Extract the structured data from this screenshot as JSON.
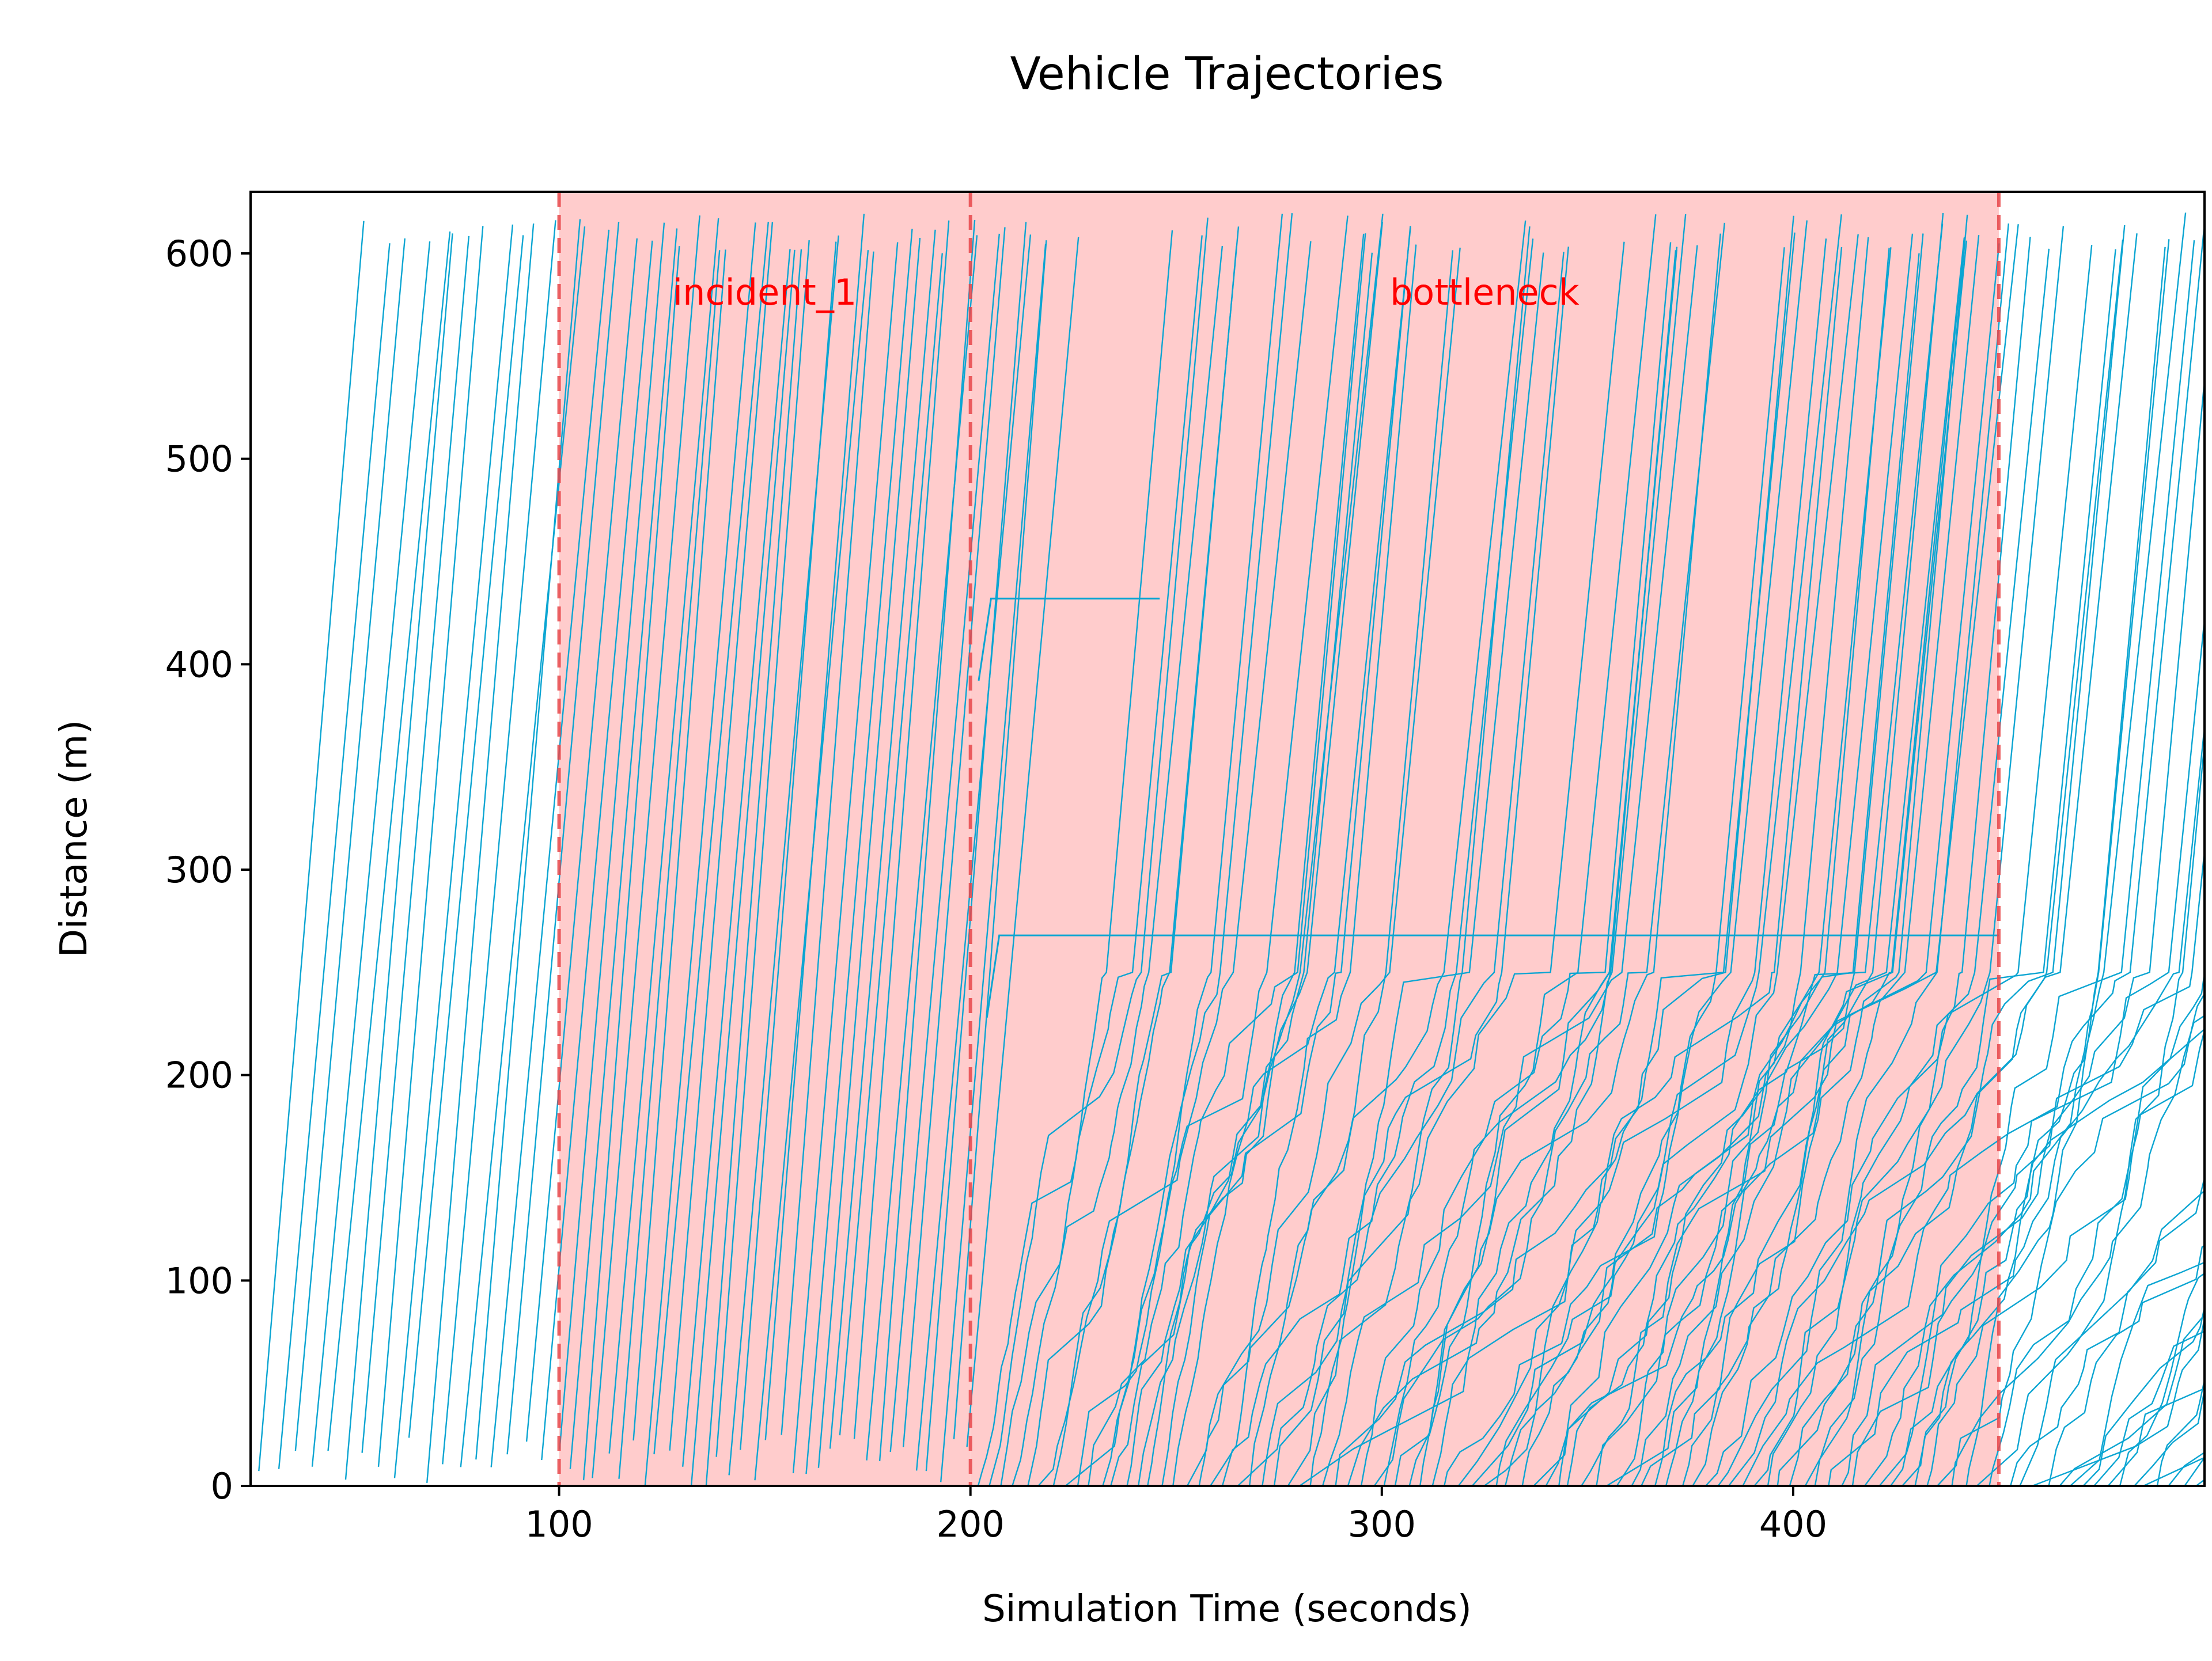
{
  "chart_data": {
    "type": "line",
    "title": "Vehicle Trajectories",
    "xlabel": "Simulation Time (seconds)",
    "ylabel": "Distance (m)",
    "xlim": [
      25,
      500
    ],
    "ylim": [
      0,
      630
    ],
    "x_ticks": [
      100,
      200,
      300,
      400
    ],
    "y_ticks": [
      0,
      100,
      200,
      300,
      400,
      500,
      600
    ],
    "grid": false,
    "road_length_m": 620,
    "free_flow_speed_mps": 22,
    "line_color": "#0aa5d2",
    "event_fill_color": "#ffcccc",
    "event_line_color": "#e8474a",
    "event_label_color": "#ff0000",
    "events": [
      {
        "name": "incident_1",
        "start": 100,
        "end": 200,
        "label_x": 150,
        "label_y": 575
      },
      {
        "name": "bottleneck",
        "start": 200,
        "end": 450,
        "label_x": 325,
        "label_y": 575
      }
    ],
    "stopped_vehicles": [
      {
        "position_m": 432,
        "stop_start_s": 205,
        "stop_end_s": 246
      },
      {
        "position_m": 268,
        "stop_start_s": 207,
        "stop_end_s": 450
      }
    ],
    "series": [
      {
        "segment": "pre-incident",
        "depart_s": [
          27,
          31,
          35,
          39,
          43,
          47,
          51,
          55,
          59,
          63,
          67,
          71,
          75,
          79,
          83,
          87,
          91,
          95
        ],
        "speed_mps": 22,
        "queue": false
      },
      {
        "segment": "incident_1",
        "depart_s": [
          99,
          102,
          105,
          108,
          111,
          114,
          117,
          120,
          123,
          126,
          129,
          132,
          135,
          138,
          141,
          144,
          147,
          150,
          153,
          156,
          159,
          162,
          165,
          168,
          171,
          174,
          177,
          180,
          183,
          186,
          189,
          192,
          195,
          198
        ],
        "speed_mps": 24,
        "queue": false
      },
      {
        "segment": "bottleneck",
        "depart_s": [
          201,
          204,
          207,
          210,
          213,
          216,
          219,
          222,
          225,
          228,
          231,
          234,
          237,
          240,
          243,
          246,
          249,
          252,
          255,
          258,
          261,
          264,
          267,
          270,
          273,
          276,
          279,
          282,
          285,
          288,
          291,
          294,
          297,
          300,
          303,
          306,
          309,
          312,
          315,
          318,
          321,
          324,
          327,
          330,
          333,
          336,
          339,
          342,
          345,
          348,
          351,
          354,
          357,
          360,
          363,
          366,
          369,
          372,
          375,
          378,
          381,
          384,
          387,
          390,
          393,
          396,
          399,
          402,
          405,
          408,
          411,
          414,
          417,
          420,
          423,
          426,
          429,
          432,
          435,
          438,
          441,
          444,
          447
        ],
        "speed_mps": 20,
        "queue": true,
        "queue_zone_m": [
          0,
          250
        ]
      },
      {
        "segment": "post-bottleneck",
        "depart_s": [
          452,
          455,
          458,
          461,
          464,
          467,
          470,
          473,
          476,
          479,
          482,
          485,
          488,
          491,
          494,
          497
        ],
        "speed_mps": 14,
        "queue": true,
        "queue_zone_m": [
          0,
          150
        ]
      }
    ]
  }
}
